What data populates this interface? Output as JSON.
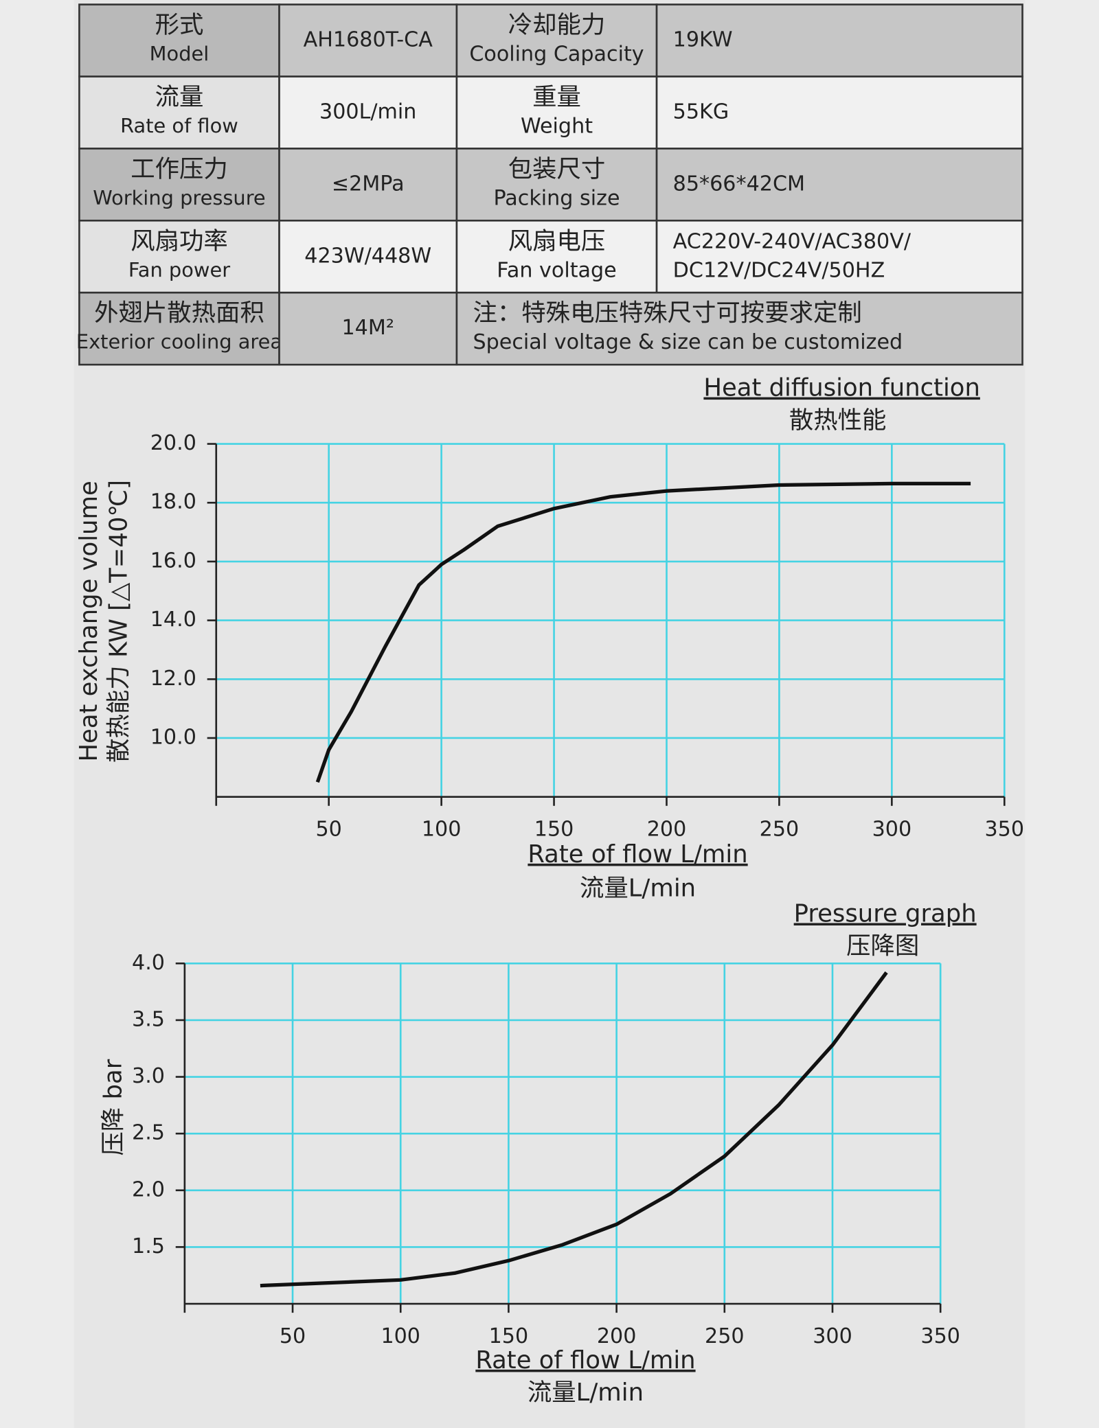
{
  "table": {
    "rows": [
      [
        [
          "形式",
          "Model"
        ],
        [
          "AH1680T-CA"
        ],
        [
          "冷却能力",
          "Cooling Capacity"
        ],
        [
          "19KW"
        ]
      ],
      [
        [
          "流量",
          "Rate of flow"
        ],
        [
          "300L/min"
        ],
        [
          "重量",
          "Weight"
        ],
        [
          "55KG"
        ]
      ],
      [
        [
          "工作压力",
          "Working pressure"
        ],
        [
          "≤2MPa"
        ],
        [
          "包装尺寸",
          "Packing size"
        ],
        [
          "85*66*42CM"
        ]
      ],
      [
        [
          "风扇功率",
          "Fan power"
        ],
        [
          "423W/448W"
        ],
        [
          "风扇电压",
          "Fan voltage"
        ],
        [
          "AC220V-240V/AC380V/",
          "DC12V/DC24V/50HZ"
        ]
      ],
      [
        [
          "外翅片散热面积",
          "Exterior cooling area"
        ],
        [
          "14M²"
        ],
        [
          "注：特殊电压特殊尺寸可按要求定制",
          "Special voltage & size can be customized"
        ]
      ]
    ]
  },
  "chart_data": [
    {
      "type": "line",
      "title": "Heat diffusion function",
      "subtitle": "散热性能",
      "y_label": [
        "Heat exchange volume",
        "散热能力 KW [△T=40℃]"
      ],
      "x_label": [
        "Rate of flow L/min",
        "流量L/min"
      ],
      "x": [
        45,
        50,
        60,
        75,
        90,
        100,
        110,
        125,
        150,
        175,
        200,
        250,
        300,
        335
      ],
      "series": [
        {
          "name": "散热性能",
          "color": "#111111",
          "values": [
            8.5,
            9.6,
            10.9,
            13.1,
            15.2,
            15.9,
            16.4,
            17.2,
            17.8,
            18.2,
            18.4,
            18.6,
            18.65,
            18.65
          ]
        }
      ],
      "xlim": [
        0,
        350
      ],
      "xticks": [
        50,
        100,
        150,
        200,
        250,
        300,
        350
      ],
      "ylim": [
        8,
        20
      ],
      "yticks": [
        {
          "value": 10,
          "label": "10.0"
        },
        {
          "value": 12,
          "label": "12.0"
        },
        {
          "value": 14,
          "label": "14.0"
        },
        {
          "value": 16,
          "label": "16.0"
        },
        {
          "value": 18,
          "label": "18.0"
        },
        {
          "value": 20,
          "label": "20.0"
        }
      ],
      "grid": true,
      "grid_color": "#45d3e3"
    },
    {
      "type": "line",
      "title": "Pressure graph",
      "subtitle": "压降图",
      "y_label": [
        "压降 bar"
      ],
      "x_label": [
        "Rate of flow L/min",
        "流量L/min"
      ],
      "x": [
        35,
        100,
        125,
        150,
        175,
        200,
        225,
        250,
        275,
        300,
        325
      ],
      "series": [
        {
          "name": "压降图",
          "color": "#111111",
          "values": [
            1.16,
            1.21,
            1.27,
            1.38,
            1.52,
            1.7,
            1.97,
            2.3,
            2.75,
            3.28,
            3.92
          ]
        }
      ],
      "xlim": [
        0,
        350
      ],
      "xticks": [
        50,
        100,
        150,
        200,
        250,
        300,
        350
      ],
      "ylim": [
        1,
        4
      ],
      "yticks": [
        1.5,
        {
          "value": 2,
          "label": "2.0"
        },
        2.5,
        {
          "value": 3,
          "label": "3.0"
        },
        3.5,
        {
          "value": 4,
          "label": "4.0"
        }
      ],
      "grid": true,
      "grid_color": "#45d3e3"
    }
  ]
}
